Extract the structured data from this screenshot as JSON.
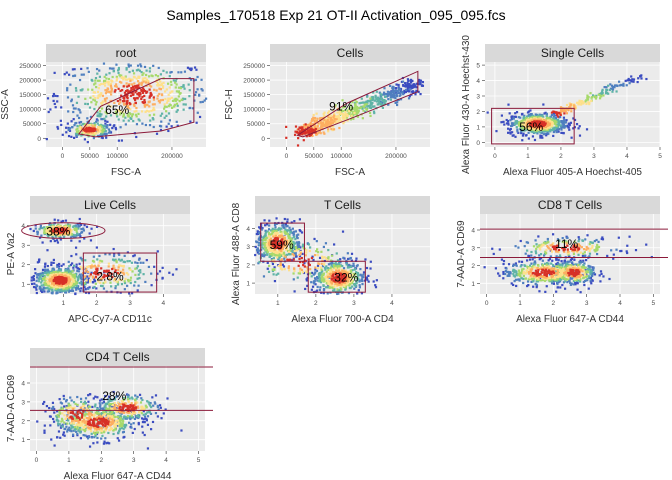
{
  "title": "Samples_170518 Exp 21 OT-II Activation_095_095.fcs",
  "colors": {
    "panel_bg": "#ebebeb",
    "grid": "#ffffff",
    "strip_bg": "#d9d9d9",
    "gate": "#8b1a3a",
    "density": [
      "#3b4cc0",
      "#4f7fbf",
      "#5fb3a6",
      "#a6d96a",
      "#fee08b",
      "#fdae61",
      "#d73027"
    ]
  },
  "chart_data": [
    {
      "type": "scatter",
      "id": "root",
      "strip": "root",
      "xlabel": "FSC-A",
      "ylabel": "SSC-A",
      "xlim": [
        -30000,
        262144
      ],
      "ylim": [
        -30000,
        262144
      ],
      "xticks": [
        0,
        50000,
        100000,
        200000
      ],
      "xticklabels": [
        "0",
        "50000",
        "100000",
        "200000"
      ],
      "yticks": [
        0,
        50000,
        100000,
        150000,
        200000,
        250000
      ],
      "yticklabels": [
        "0",
        "50000",
        "100000",
        "150000",
        "200000",
        "250000"
      ],
      "clusters": [
        {
          "cx": 130000,
          "cy": 150000,
          "sx": 70000,
          "sy": 60000,
          "n": 650
        },
        {
          "cx": 50000,
          "cy": 30000,
          "sx": 20000,
          "sy": 15000,
          "n": 200
        }
      ],
      "gates": [
        {
          "shape": "polygon",
          "points": [
            [
              30000,
              15000
            ],
            [
              70000,
              110000
            ],
            [
              180000,
              205000
            ],
            [
              240000,
              205000
            ],
            [
              240000,
              55000
            ],
            [
              180000,
              25000
            ],
            [
              60000,
              5000
            ]
          ],
          "label": "65%",
          "label_xy": [
            100000,
            98000
          ]
        }
      ]
    },
    {
      "type": "scatter",
      "id": "cells",
      "strip": "Cells",
      "xlabel": "FSC-A",
      "ylabel": "FSC-H",
      "xlim": [
        -30000,
        262144
      ],
      "ylim": [
        -30000,
        262144
      ],
      "xticks": [
        0,
        50000,
        100000,
        200000
      ],
      "xticklabels": [
        "0",
        "50000",
        "100000",
        "200000"
      ],
      "yticks": [
        0,
        50000,
        100000,
        150000,
        200000,
        250000
      ],
      "yticklabels": [
        "0",
        "50000",
        "100000",
        "150000",
        "200000",
        "250000"
      ],
      "diagonal": {
        "x0": 30000,
        "x1": 240000,
        "y0": 20000,
        "y1": 190000,
        "spread": 12000,
        "n": 700
      },
      "gates": [
        {
          "shape": "polygon",
          "points": [
            [
              20000,
              10000
            ],
            [
              110000,
              120000
            ],
            [
              240000,
              230000
            ],
            [
              240000,
              160000
            ],
            [
              120000,
              70000
            ],
            [
              30000,
              5000
            ]
          ],
          "label": "91%",
          "label_xy": [
            100000,
            110000
          ]
        }
      ]
    },
    {
      "type": "scatter",
      "id": "single_cells",
      "strip": "Single Cells",
      "xlabel": "Alexa Fluor 405-A Hoechst-405",
      "ylabel": "Alexa Fluor 430-A Hoechst-430",
      "xlim": [
        -0.3,
        5.0
      ],
      "ylim": [
        -0.3,
        5.2
      ],
      "xticks": [
        0,
        1,
        2,
        3,
        4,
        5
      ],
      "xticklabels": [
        "0",
        "1",
        "2",
        "3",
        "4",
        "5"
      ],
      "yticks": [
        0,
        1,
        2,
        3,
        4,
        5
      ],
      "yticklabels": [
        "0",
        "1",
        "2",
        "3",
        "4",
        "5"
      ],
      "clusters": [
        {
          "cx": 1.3,
          "cy": 1.2,
          "sx": 0.45,
          "sy": 0.35,
          "n": 600
        }
      ],
      "diagonal": {
        "x0": 1.8,
        "x1": 4.4,
        "y0": 1.8,
        "y1": 4.3,
        "spread": 0.1,
        "n": 150
      },
      "gates": [
        {
          "shape": "rect",
          "x0": -0.1,
          "x1": 2.4,
          "y0": -0.1,
          "y1": 2.2,
          "label": "56%",
          "label_xy": [
            1.1,
            1.0
          ]
        }
      ]
    },
    {
      "type": "scatter",
      "id": "live_cells",
      "strip": "Live Cells",
      "xlabel": "APC-Cy7-A CD11c",
      "ylabel": "PE-A Va2",
      "xlim": [
        0,
        4.8
      ],
      "ylim": [
        0.5,
        4.6
      ],
      "xticks": [
        1,
        2,
        3,
        4
      ],
      "xticklabels": [
        "1",
        "2",
        "3",
        "4"
      ],
      "yticks": [
        1,
        2,
        3,
        4
      ],
      "yticklabels": [
        "1",
        "2",
        "3",
        "4"
      ],
      "clusters": [
        {
          "cx": 0.9,
          "cy": 1.2,
          "sx": 0.4,
          "sy": 0.35,
          "n": 600
        },
        {
          "cx": 0.9,
          "cy": 3.75,
          "sx": 0.4,
          "sy": 0.22,
          "n": 250
        },
        {
          "cx": 2.2,
          "cy": 1.6,
          "sx": 0.8,
          "sy": 0.5,
          "n": 250
        }
      ],
      "gates": [
        {
          "shape": "ellipse",
          "cx": 1.0,
          "cy": 3.75,
          "rx": 1.25,
          "ry": 0.4,
          "label": "38%",
          "label_xy": [
            0.85,
            3.7
          ]
        },
        {
          "shape": "rect",
          "x0": 1.6,
          "x1": 3.8,
          "y0": 0.6,
          "y1": 2.6,
          "label": "2.8%",
          "label_xy": [
            2.4,
            1.4
          ]
        }
      ]
    },
    {
      "type": "scatter",
      "id": "t_cells",
      "strip": "T Cells",
      "xlabel": "Alexa Fluor 700-A CD4",
      "ylabel": "Alexa Fluor 488-A CD8",
      "xlim": [
        0.4,
        5.0
      ],
      "ylim": [
        0.4,
        4.8
      ],
      "xticks": [
        1,
        2,
        3,
        4
      ],
      "xticklabels": [
        "1",
        "2",
        "3",
        "4"
      ],
      "yticks": [
        1,
        2,
        3,
        4
      ],
      "yticklabels": [
        "1",
        "2",
        "3",
        "4"
      ],
      "clusters": [
        {
          "cx": 1.0,
          "cy": 3.2,
          "sx": 0.3,
          "sy": 0.55,
          "n": 500
        },
        {
          "cx": 2.6,
          "cy": 1.3,
          "sx": 0.35,
          "sy": 0.5,
          "n": 450
        },
        {
          "cx": 1.6,
          "cy": 2.2,
          "sx": 0.7,
          "sy": 0.6,
          "n": 200
        }
      ],
      "gates": [
        {
          "shape": "rect",
          "x0": 0.55,
          "x1": 1.7,
          "y0": 2.2,
          "y1": 4.3,
          "label": "59%",
          "label_xy": [
            1.1,
            3.1
          ]
        },
        {
          "shape": "rect",
          "x0": 1.8,
          "x1": 3.3,
          "y0": 0.5,
          "y1": 2.2,
          "label": "32%",
          "label_xy": [
            2.8,
            1.3
          ]
        }
      ]
    },
    {
      "type": "scatter",
      "id": "cd8_t_cells",
      "strip": "CD8 T Cells",
      "xlabel": "Alexa Fluor 647-A CD44",
      "ylabel": "7-AAD-A CD69",
      "xlim": [
        -0.2,
        5.2
      ],
      "ylim": [
        0.4,
        4.9
      ],
      "xticks": [
        0,
        1,
        2,
        3,
        4,
        5
      ],
      "xticklabels": [
        "0",
        "1",
        "2",
        "3",
        "4",
        "5"
      ],
      "yticks": [
        1,
        2,
        3,
        4
      ],
      "yticklabels": [
        "1",
        "2",
        "3",
        "4"
      ],
      "clusters": [
        {
          "cx": 1.7,
          "cy": 1.6,
          "sx": 0.6,
          "sy": 0.35,
          "n": 450
        },
        {
          "cx": 2.6,
          "cy": 1.6,
          "sx": 0.35,
          "sy": 0.35,
          "n": 300
        },
        {
          "cx": 2.4,
          "cy": 3.0,
          "sx": 0.8,
          "sy": 0.3,
          "n": 200
        }
      ],
      "gates": [
        {
          "shape": "hband",
          "y0": 2.45,
          "y1": 4.05,
          "label": "11%",
          "label_xy": [
            2.4,
            3.2
          ]
        }
      ]
    },
    {
      "type": "scatter",
      "id": "cd4_t_cells",
      "strip": "CD4 T Cells",
      "xlabel": "Alexa Fluor 647-A CD44",
      "ylabel": "7-AAD-A CD69",
      "xlim": [
        -0.2,
        5.2
      ],
      "ylim": [
        0.4,
        4.9
      ],
      "xticks": [
        0,
        1,
        2,
        3,
        4,
        5
      ],
      "xticklabels": [
        "0",
        "1",
        "2",
        "3",
        "4",
        "5"
      ],
      "yticks": [
        1,
        2,
        3,
        4
      ],
      "yticklabels": [
        "1",
        "2",
        "3",
        "4"
      ],
      "clusters": [
        {
          "cx": 1.9,
          "cy": 1.9,
          "sx": 0.6,
          "sy": 0.45,
          "n": 450
        },
        {
          "cx": 1.3,
          "cy": 2.3,
          "sx": 0.5,
          "sy": 0.5,
          "n": 200
        },
        {
          "cx": 2.8,
          "cy": 2.7,
          "sx": 0.5,
          "sy": 0.35,
          "n": 250
        }
      ],
      "gates": [
        {
          "shape": "hband",
          "y0": 2.55,
          "y1": 4.85,
          "label": "28%",
          "label_xy": [
            2.4,
            3.3
          ]
        }
      ]
    }
  ]
}
